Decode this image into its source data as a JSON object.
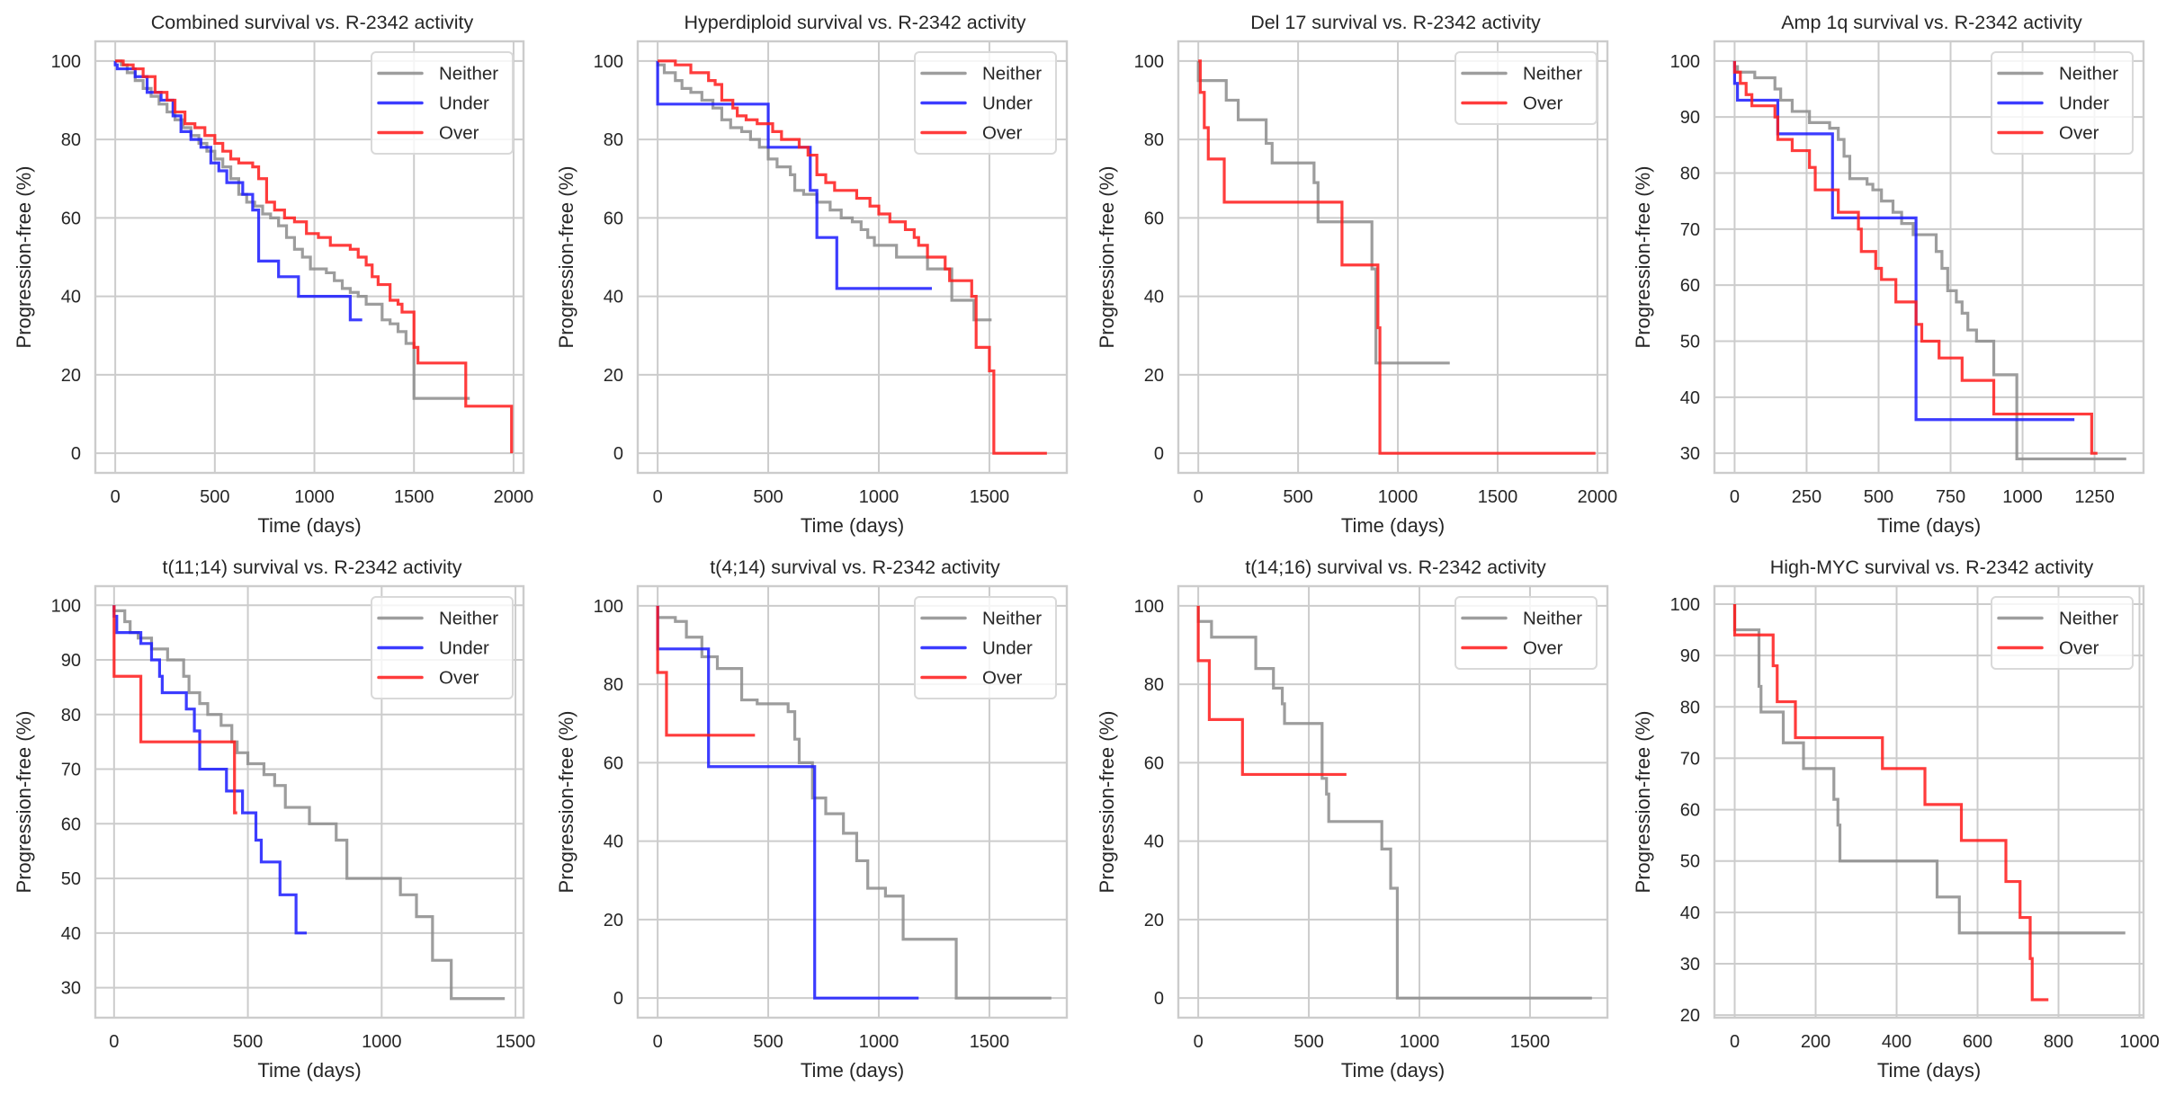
{
  "figure": {
    "series_colors": {
      "Neither": "#8c8c8c",
      "Under": "#1a1aff",
      "Over": "#ff1a1a"
    },
    "grid_color": "#cccccc",
    "frame_color": "#cccccc"
  },
  "chart_data": [
    {
      "type": "line",
      "step": true,
      "title": "Combined survival vs. R-2342 activity",
      "xlabel": "Time (days)",
      "ylabel": "Progression-free (%)",
      "xlim": [
        -100,
        2050
      ],
      "ylim": [
        -5,
        105
      ],
      "xticks": [
        0,
        500,
        1000,
        1500,
        2000
      ],
      "yticks": [
        0,
        20,
        40,
        60,
        80,
        100
      ],
      "grid": true,
      "legend": "top-right",
      "series": [
        {
          "name": "Neither",
          "x": [
            0,
            30,
            60,
            100,
            140,
            180,
            220,
            260,
            300,
            340,
            380,
            420,
            460,
            500,
            540,
            580,
            620,
            660,
            700,
            740,
            780,
            820,
            860,
            900,
            940,
            980,
            1020,
            1060,
            1100,
            1140,
            1180,
            1220,
            1260,
            1300,
            1340,
            1380,
            1420,
            1460,
            1500,
            1780
          ],
          "y": [
            100,
            99,
            97,
            95,
            93,
            91,
            89,
            87,
            85,
            83,
            81,
            79,
            77,
            75,
            73,
            70,
            66,
            64,
            63,
            61,
            60,
            58,
            55,
            52,
            50,
            47,
            47,
            46,
            44,
            42,
            41,
            40,
            38,
            38,
            34,
            33,
            31,
            28,
            14,
            14
          ]
        },
        {
          "name": "Under",
          "x": [
            0,
            10,
            100,
            160,
            230,
            290,
            330,
            380,
            430,
            480,
            520,
            560,
            640,
            690,
            720,
            820,
            920,
            1180,
            1240
          ],
          "y": [
            99,
            98,
            96,
            92,
            90,
            86,
            82,
            80,
            78,
            74,
            72,
            69,
            66,
            62,
            49,
            45,
            40,
            34,
            34
          ]
        },
        {
          "name": "Over",
          "x": [
            0,
            40,
            90,
            140,
            200,
            260,
            300,
            350,
            400,
            450,
            500,
            540,
            580,
            620,
            690,
            720,
            760,
            800,
            850,
            900,
            960,
            1020,
            1080,
            1180,
            1220,
            1260,
            1290,
            1320,
            1380,
            1420,
            1440,
            1500,
            1520,
            1760,
            1990
          ],
          "y": [
            100,
            99,
            98,
            96,
            92,
            90,
            87,
            84,
            83,
            81,
            79,
            77,
            75,
            74,
            73,
            70,
            64,
            62,
            60,
            59,
            56,
            55,
            53,
            52,
            50,
            48,
            45,
            43,
            39,
            38,
            36,
            27,
            23,
            12,
            0
          ]
        }
      ]
    },
    {
      "type": "line",
      "step": true,
      "title": "Hyperdiploid survival vs. R-2342 activity",
      "xlabel": "Time (days)",
      "ylabel": "Progression-free (%)",
      "xlim": [
        -90,
        1850
      ],
      "ylim": [
        -5,
        105
      ],
      "xticks": [
        0,
        500,
        1000,
        1500
      ],
      "yticks": [
        0,
        20,
        40,
        60,
        80,
        100
      ],
      "grid": true,
      "legend": "top-right",
      "series": [
        {
          "name": "Neither",
          "x": [
            0,
            30,
            80,
            110,
            150,
            200,
            250,
            290,
            330,
            380,
            420,
            460,
            500,
            540,
            600,
            620,
            660,
            720,
            780,
            830,
            880,
            920,
            950,
            980,
            1080,
            1220,
            1330,
            1430,
            1510
          ],
          "y": [
            99,
            97,
            95,
            93,
            92,
            90,
            88,
            85,
            83,
            82,
            80,
            78,
            75,
            73,
            71,
            67,
            66,
            64,
            62,
            60,
            59,
            57,
            55,
            53,
            50,
            47,
            39,
            34,
            34
          ]
        },
        {
          "name": "Under",
          "x": [
            0,
            500,
            690,
            720,
            810,
            1240
          ],
          "y": [
            89,
            78,
            67,
            55,
            42,
            42
          ]
        },
        {
          "name": "Over",
          "x": [
            0,
            80,
            150,
            230,
            260,
            290,
            340,
            360,
            400,
            450,
            500,
            520,
            560,
            640,
            680,
            720,
            760,
            800,
            900,
            960,
            1000,
            1050,
            1120,
            1160,
            1180,
            1220,
            1300,
            1320,
            1420,
            1440,
            1500,
            1520,
            1760
          ],
          "y": [
            100,
            99,
            97,
            95,
            94,
            90,
            88,
            86,
            85,
            84,
            84,
            82,
            80,
            78,
            76,
            71,
            69,
            67,
            65,
            63,
            61,
            59,
            57,
            55,
            53,
            50,
            47,
            44,
            40,
            27,
            21,
            0,
            0
          ]
        }
      ]
    },
    {
      "type": "line",
      "step": true,
      "title": "Del 17 survival vs. R-2342 activity",
      "xlabel": "Time (days)",
      "ylabel": "Progression-free (%)",
      "xlim": [
        -100,
        2050
      ],
      "ylim": [
        -5,
        105
      ],
      "xticks": [
        0,
        500,
        1000,
        1500,
        2000
      ],
      "yticks": [
        0,
        20,
        40,
        60,
        80,
        100
      ],
      "grid": true,
      "legend": "top-right",
      "series": [
        {
          "name": "Neither",
          "x": [
            0,
            140,
            200,
            340,
            370,
            580,
            600,
            870,
            890,
            1260
          ],
          "y": [
            95,
            90,
            85,
            79,
            74,
            69,
            59,
            47,
            23,
            23
          ]
        },
        {
          "name": "Over",
          "x": [
            0,
            10,
            30,
            50,
            130,
            720,
            900,
            910,
            1990
          ],
          "y": [
            100,
            92,
            83,
            75,
            64,
            48,
            32,
            0,
            0
          ]
        }
      ]
    },
    {
      "type": "line",
      "step": true,
      "title": "Amp 1q survival vs. R-2342 activity",
      "xlabel": "Time (days)",
      "ylabel": "Progression-free (%)",
      "xlim": [
        -70,
        1420
      ],
      "ylim": [
        26.5,
        103.5
      ],
      "xticks": [
        0,
        250,
        500,
        750,
        1000,
        1250
      ],
      "yticks": [
        30,
        40,
        50,
        60,
        70,
        80,
        90,
        100
      ],
      "grid": true,
      "legend": "top-right",
      "series": [
        {
          "name": "Neither",
          "x": [
            0,
            10,
            70,
            140,
            160,
            200,
            260,
            330,
            360,
            380,
            400,
            460,
            480,
            510,
            550,
            580,
            620,
            700,
            720,
            740,
            770,
            790,
            810,
            840,
            900,
            980,
            1360
          ],
          "y": [
            99,
            98,
            97,
            95,
            93,
            91,
            89,
            88,
            86,
            83,
            79,
            78,
            77,
            75,
            73,
            71,
            69,
            66,
            63,
            59,
            57,
            55,
            52,
            50,
            44,
            29,
            29
          ]
        },
        {
          "name": "Under",
          "x": [
            0,
            10,
            150,
            340,
            630,
            1180
          ],
          "y": [
            96,
            93,
            87,
            72,
            36,
            36
          ]
        },
        {
          "name": "Over",
          "x": [
            0,
            20,
            40,
            60,
            140,
            150,
            200,
            260,
            280,
            360,
            430,
            440,
            490,
            510,
            560,
            630,
            650,
            710,
            790,
            900,
            1240,
            1260
          ],
          "y": [
            98,
            96,
            94,
            92,
            90,
            86,
            84,
            81,
            77,
            73,
            70,
            66,
            63,
            61,
            57,
            53,
            50,
            47,
            43,
            37,
            30,
            30
          ]
        }
      ]
    },
    {
      "type": "line",
      "step": true,
      "title": "t(11;14) survival vs. R-2342 activity",
      "xlabel": "Time (days)",
      "ylabel": "Progression-free (%)",
      "xlim": [
        -70,
        1530
      ],
      "ylim": [
        24.5,
        103.5
      ],
      "xticks": [
        0,
        500,
        1000,
        1500
      ],
      "yticks": [
        30,
        40,
        50,
        60,
        70,
        80,
        90,
        100
      ],
      "grid": true,
      "legend": "top-right",
      "series": [
        {
          "name": "Neither",
          "x": [
            0,
            40,
            60,
            90,
            140,
            200,
            260,
            280,
            320,
            350,
            400,
            440,
            460,
            500,
            560,
            600,
            640,
            730,
            830,
            870,
            1070,
            1130,
            1190,
            1260,
            1460
          ],
          "y": [
            99,
            97,
            95,
            94,
            92,
            90,
            87,
            84,
            82,
            80,
            78,
            75,
            73,
            71,
            69,
            67,
            63,
            60,
            57,
            50,
            47,
            43,
            35,
            28,
            28
          ]
        },
        {
          "name": "Under",
          "x": [
            0,
            10,
            100,
            140,
            170,
            180,
            270,
            300,
            320,
            420,
            480,
            530,
            550,
            620,
            680,
            720
          ],
          "y": [
            98,
            95,
            93,
            90,
            87,
            84,
            81,
            77,
            70,
            66,
            62,
            57,
            53,
            47,
            40,
            40
          ]
        },
        {
          "name": "Over",
          "x": [
            0,
            100,
            450,
            460
          ],
          "y": [
            87,
            75,
            62,
            62
          ]
        }
      ]
    },
    {
      "type": "line",
      "step": true,
      "title": "t(4;14) survival vs. R-2342 activity",
      "xlabel": "Time (days)",
      "ylabel": "Progression-free (%)",
      "xlim": [
        -90,
        1850
      ],
      "ylim": [
        -5,
        105
      ],
      "xticks": [
        0,
        500,
        1000,
        1500
      ],
      "yticks": [
        0,
        20,
        40,
        60,
        80,
        100
      ],
      "grid": true,
      "legend": "top-right",
      "series": [
        {
          "name": "Neither",
          "x": [
            0,
            80,
            130,
            200,
            270,
            380,
            450,
            590,
            620,
            640,
            700,
            760,
            840,
            900,
            950,
            1030,
            1110,
            1350,
            1780
          ],
          "y": [
            97,
            96,
            92,
            87,
            84,
            76,
            75,
            73,
            66,
            60,
            51,
            47,
            42,
            35,
            28,
            26,
            15,
            0,
            0
          ]
        },
        {
          "name": "Under",
          "x": [
            0,
            230,
            710,
            1180
          ],
          "y": [
            89,
            59,
            0,
            0
          ]
        },
        {
          "name": "Over",
          "x": [
            0,
            40,
            440
          ],
          "y": [
            83,
            67,
            67
          ]
        }
      ]
    },
    {
      "type": "line",
      "step": true,
      "title": "t(14;16) survival vs. R-2342 activity",
      "xlabel": "Time (days)",
      "ylabel": "Progression-free (%)",
      "xlim": [
        -90,
        1850
      ],
      "ylim": [
        -5,
        105
      ],
      "xticks": [
        0,
        500,
        1000,
        1500
      ],
      "yticks": [
        0,
        20,
        40,
        60,
        80,
        100
      ],
      "grid": true,
      "legend": "top-right",
      "series": [
        {
          "name": "Neither",
          "x": [
            0,
            60,
            260,
            340,
            380,
            390,
            560,
            580,
            590,
            830,
            870,
            900,
            1780
          ],
          "y": [
            96,
            92,
            84,
            79,
            75,
            70,
            56,
            52,
            45,
            38,
            28,
            0,
            0
          ]
        },
        {
          "name": "Over",
          "x": [
            0,
            50,
            200,
            670
          ],
          "y": [
            86,
            71,
            57,
            57
          ]
        }
      ]
    },
    {
      "type": "line",
      "step": true,
      "title": "High-MYC survival vs. R-2342 activity",
      "xlabel": "Time (days)",
      "ylabel": "Progression-free (%)",
      "xlim": [
        -50,
        1010
      ],
      "ylim": [
        19.5,
        103.5
      ],
      "xticks": [
        0,
        200,
        400,
        600,
        800,
        1000
      ],
      "yticks": [
        20,
        30,
        40,
        50,
        60,
        70,
        80,
        90,
        100
      ],
      "grid": true,
      "legend": "top-right",
      "series": [
        {
          "name": "Neither",
          "x": [
            0,
            60,
            65,
            120,
            170,
            245,
            255,
            260,
            500,
            555,
            965
          ],
          "y": [
            95,
            84,
            79,
            73,
            68,
            62,
            57,
            50,
            43,
            36,
            36
          ]
        },
        {
          "name": "Over",
          "x": [
            0,
            95,
            105,
            150,
            365,
            470,
            560,
            670,
            705,
            730,
            735,
            775
          ],
          "y": [
            94,
            88,
            81,
            74,
            68,
            61,
            54,
            46,
            39,
            31,
            23,
            23
          ]
        }
      ]
    }
  ]
}
